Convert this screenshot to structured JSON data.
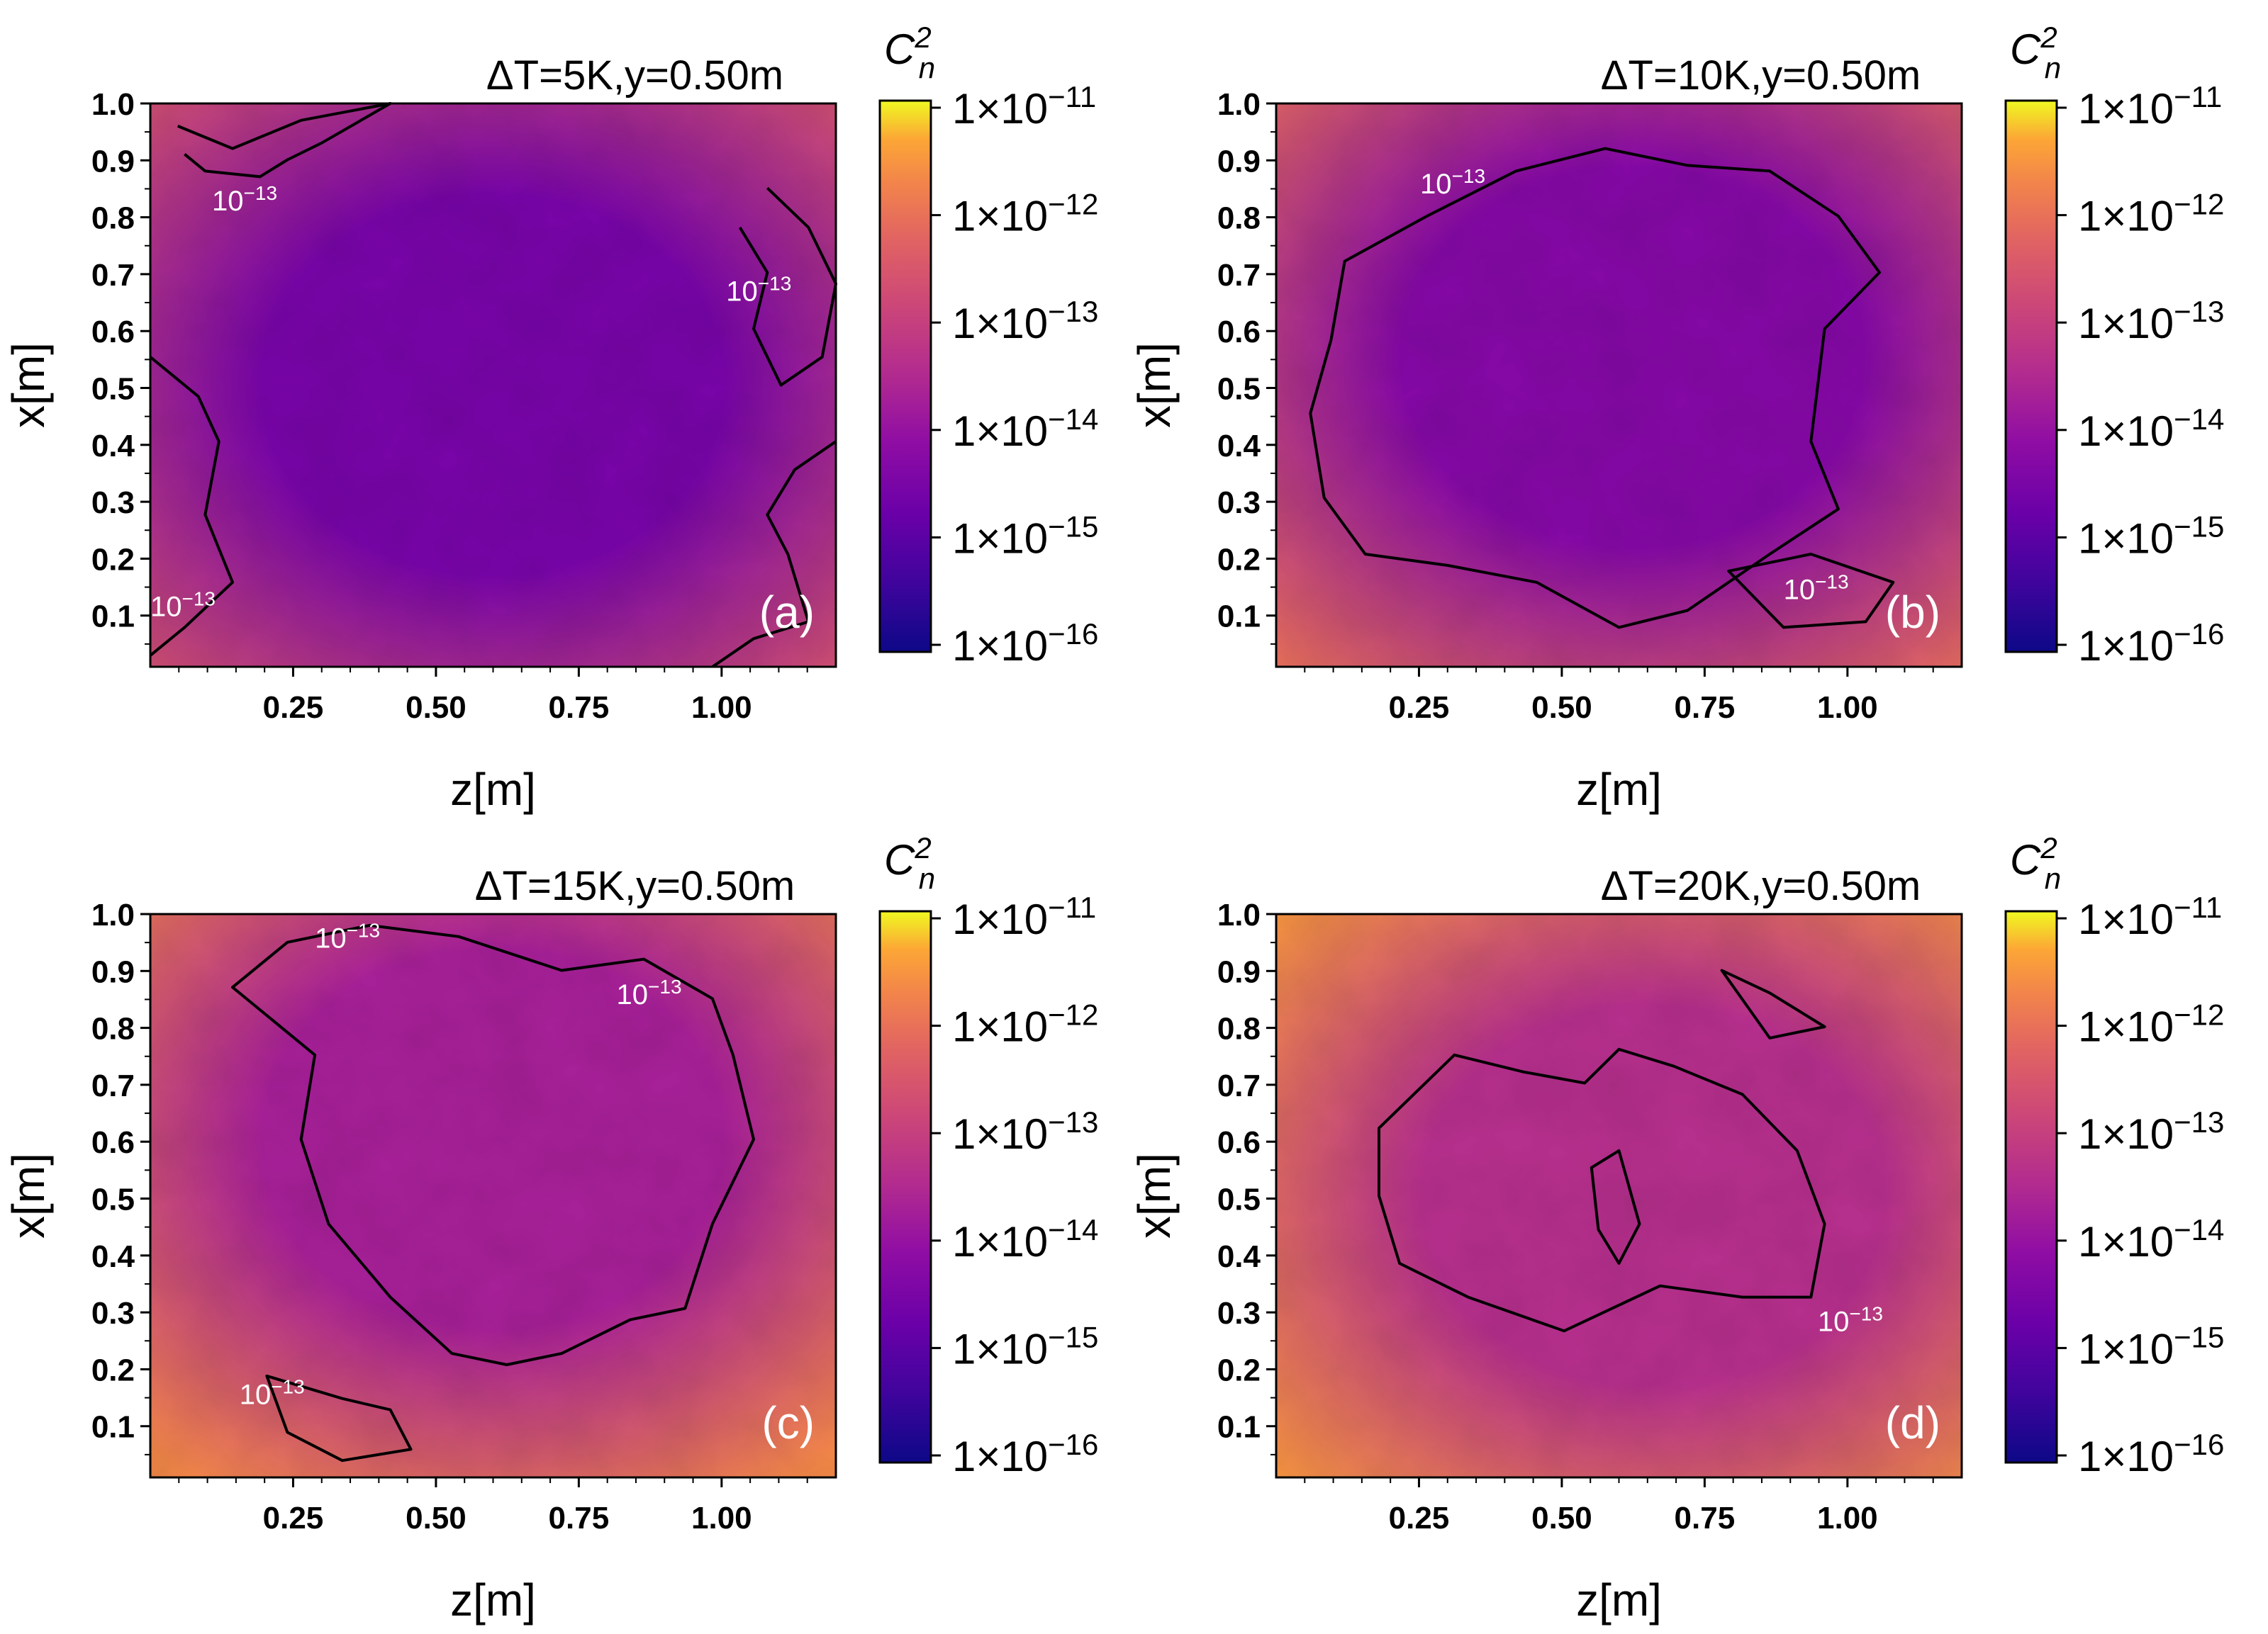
{
  "chart_data": [
    {
      "type": "heatmap",
      "panel_label": "(a)",
      "title": "ΔT=5K,y=0.50m",
      "xlabel": "z[m]",
      "ylabel": "x[m]",
      "xlim": [
        0.0,
        1.2
      ],
      "ylim": [
        0.01,
        1.0
      ],
      "x_ticks": [
        "0.25",
        "0.50",
        "0.75",
        "1.00"
      ],
      "y_ticks": [
        "1.0",
        "0.9",
        "0.8",
        "0.7",
        "0.6",
        "0.5",
        "0.4",
        "0.3",
        "0.2",
        "0.1"
      ],
      "colorbar_label": "C",
      "colorbar_label_super": "2",
      "colorbar_label_sub": "n",
      "colorbar_scale": "log",
      "colorbar_range": [
        1e-16,
        1e-11
      ],
      "colorbar_ticks": [
        "1×10",
        "1×10",
        "1×10",
        "1×10",
        "1×10",
        "1×10"
      ],
      "colorbar_tick_exponents": [
        "−11",
        "−12",
        "−13",
        "−14",
        "−15",
        "−16"
      ],
      "contour_level": 1e-13,
      "contour_label_base": "10",
      "contour_label_exponent": "−13",
      "approx_core_value": 3e-15,
      "approx_edge_value": 3e-13
    },
    {
      "type": "heatmap",
      "panel_label": "(b)",
      "title": "ΔT=10K,y=0.50m",
      "xlabel": "z[m]",
      "ylabel": "x[m]",
      "xlim": [
        0.0,
        1.2
      ],
      "ylim": [
        0.01,
        1.0
      ],
      "x_ticks": [
        "0.25",
        "0.50",
        "0.75",
        "1.00"
      ],
      "y_ticks": [
        "1.0",
        "0.9",
        "0.8",
        "0.7",
        "0.6",
        "0.5",
        "0.4",
        "0.3",
        "0.2",
        "0.1"
      ],
      "colorbar_label": "C",
      "colorbar_label_super": "2",
      "colorbar_label_sub": "n",
      "colorbar_scale": "log",
      "colorbar_range": [
        1e-16,
        1e-11
      ],
      "colorbar_ticks": [
        "1×10",
        "1×10",
        "1×10",
        "1×10",
        "1×10",
        "1×10"
      ],
      "colorbar_tick_exponents": [
        "−11",
        "−12",
        "−13",
        "−14",
        "−15",
        "−16"
      ],
      "contour_level": 1e-13,
      "contour_label_base": "10",
      "contour_label_exponent": "−13",
      "approx_core_value": 5e-15,
      "approx_edge_value": 8e-13
    },
    {
      "type": "heatmap",
      "panel_label": "(c)",
      "title": "ΔT=15K,y=0.50m",
      "xlabel": "z[m]",
      "ylabel": "x[m]",
      "xlim": [
        0.0,
        1.2
      ],
      "ylim": [
        0.01,
        1.0
      ],
      "x_ticks": [
        "0.25",
        "0.50",
        "0.75",
        "1.00"
      ],
      "y_ticks": [
        "1.0",
        "0.9",
        "0.8",
        "0.7",
        "0.6",
        "0.5",
        "0.4",
        "0.3",
        "0.2",
        "0.1"
      ],
      "colorbar_label": "C",
      "colorbar_label_super": "2",
      "colorbar_label_sub": "n",
      "colorbar_scale": "log",
      "colorbar_range": [
        1e-16,
        1e-11
      ],
      "colorbar_ticks": [
        "1×10",
        "1×10",
        "1×10",
        "1×10",
        "1×10",
        "1×10"
      ],
      "colorbar_tick_exponents": [
        "−11",
        "−12",
        "−13",
        "−14",
        "−15",
        "−16"
      ],
      "contour_level": 1e-13,
      "contour_label_base": "10",
      "contour_label_exponent": "−13",
      "approx_core_value": 2e-14,
      "approx_edge_value": 2e-12
    },
    {
      "type": "heatmap",
      "panel_label": "(d)",
      "title": "ΔT=20K,y=0.50m",
      "xlabel": "z[m]",
      "ylabel": "x[m]",
      "xlim": [
        0.0,
        1.2
      ],
      "ylim": [
        0.01,
        1.0
      ],
      "x_ticks": [
        "0.25",
        "0.50",
        "0.75",
        "1.00"
      ],
      "y_ticks": [
        "1.0",
        "0.9",
        "0.8",
        "0.7",
        "0.6",
        "0.5",
        "0.4",
        "0.3",
        "0.2",
        "0.1"
      ],
      "colorbar_label": "C",
      "colorbar_label_super": "2",
      "colorbar_label_sub": "n",
      "colorbar_scale": "log",
      "colorbar_range": [
        1e-16,
        1e-11
      ],
      "colorbar_ticks": [
        "1×10",
        "1×10",
        "1×10",
        "1×10",
        "1×10",
        "1×10"
      ],
      "colorbar_tick_exponents": [
        "−11",
        "−12",
        "−13",
        "−14",
        "−15",
        "−16"
      ],
      "contour_level": 1e-13,
      "contour_label_base": "10",
      "contour_label_exponent": "−13",
      "approx_core_value": 4e-14,
      "approx_edge_value": 3e-12
    }
  ]
}
